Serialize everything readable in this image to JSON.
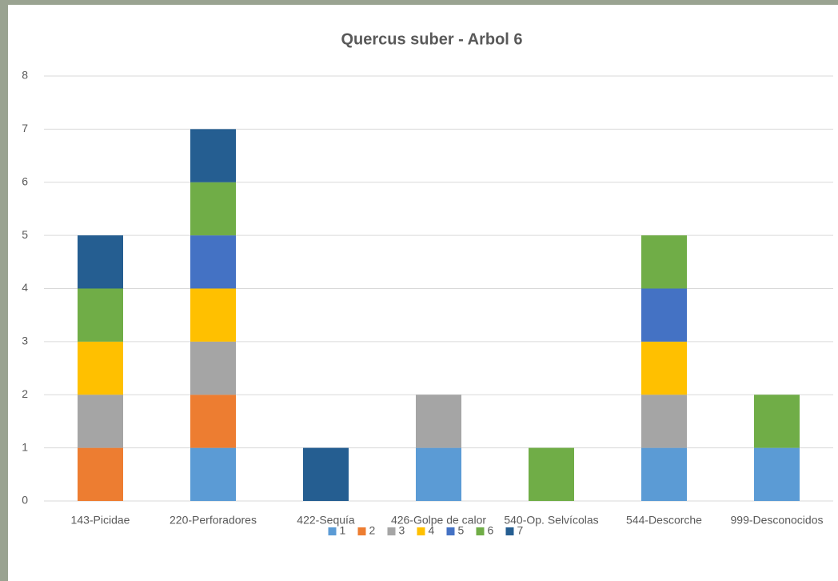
{
  "chart_data": {
    "type": "stacked_bar",
    "title": "Quercus suber - Arbol 6",
    "categories": [
      "143-Picidae",
      "220-Perforadores",
      "422-Sequía",
      "426-Golpe de calor",
      "540-Op. Selvícolas",
      "544-Descorche",
      "999-Desconocidos"
    ],
    "series": [
      {
        "name": "1",
        "color": "#5b9bd5",
        "values": [
          0,
          1,
          0,
          1,
          0,
          1,
          1
        ]
      },
      {
        "name": "2",
        "color": "#ed7d31",
        "values": [
          1,
          1,
          0,
          0,
          0,
          0,
          0
        ]
      },
      {
        "name": "3",
        "color": "#a5a5a5",
        "values": [
          1,
          1,
          0,
          1,
          0,
          1,
          0
        ]
      },
      {
        "name": "4",
        "color": "#ffc000",
        "values": [
          1,
          1,
          0,
          0,
          0,
          1,
          0
        ]
      },
      {
        "name": "5",
        "color": "#4472c4",
        "values": [
          0,
          1,
          0,
          0,
          0,
          1,
          0
        ]
      },
      {
        "name": "6",
        "color": "#70ad47",
        "values": [
          1,
          1,
          0,
          0,
          1,
          1,
          1
        ]
      },
      {
        "name": "7",
        "color": "#255e91",
        "values": [
          1,
          1,
          1,
          0,
          0,
          0,
          0
        ]
      }
    ],
    "ylim": [
      0,
      8
    ],
    "yticks": [
      0,
      1,
      2,
      3,
      4,
      5,
      6,
      7,
      8
    ],
    "grid": true,
    "legend": "bottom"
  }
}
